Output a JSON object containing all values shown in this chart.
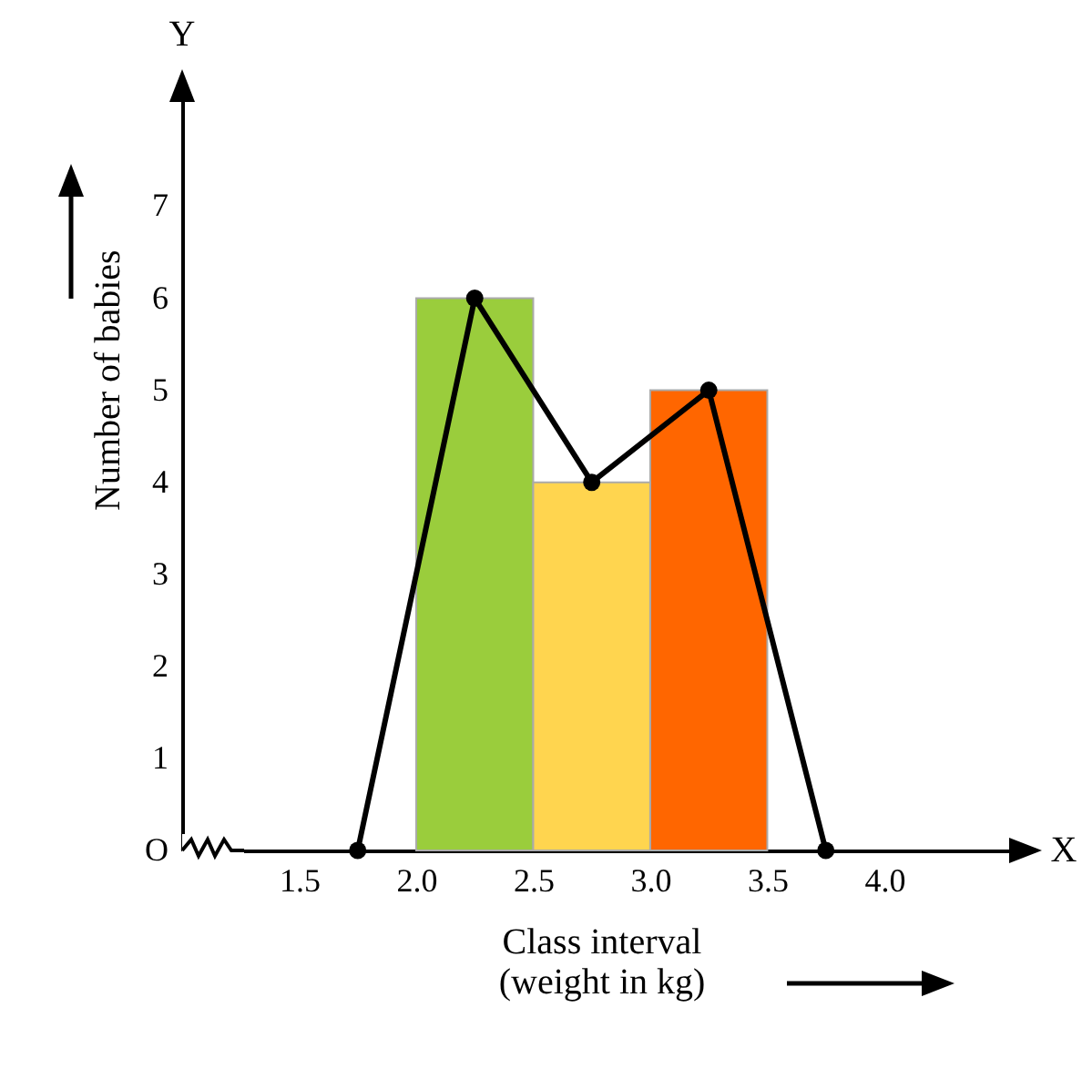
{
  "chart_data": {
    "type": "histogram",
    "xlabel": "Class interval\n(weight in kg)",
    "ylabel": "Number of babies",
    "annotations": [
      "X",
      "Y"
    ],
    "bins": [
      2.0,
      2.5,
      3.0,
      3.5
    ],
    "values": [
      6,
      4,
      5
    ],
    "colors": [
      "#9acd3c",
      "#ffd54f",
      "#ff6600"
    ],
    "series": [
      {
        "type": "line",
        "x": [
          1.75,
          2.25,
          2.75,
          3.25,
          3.75
        ],
        "values": [
          0,
          6,
          4,
          5,
          0
        ],
        "color": "#000000"
      }
    ],
    "marker": "circle",
    "line_style": "solid",
    "grid": false,
    "legend": false,
    "xlim": [
      1.0,
      4.58
    ],
    "xticks": [
      1.5,
      {
        "value": 2,
        "label": "2.0"
      },
      2.5,
      {
        "value": 3,
        "label": "3.0"
      },
      3.5,
      {
        "value": 4,
        "label": "4.0"
      }
    ],
    "ylim": [
      0,
      8.35
    ],
    "yticks": [
      {
        "value": 0,
        "label": "O"
      },
      1,
      2,
      3,
      4,
      5,
      6,
      7
    ]
  }
}
